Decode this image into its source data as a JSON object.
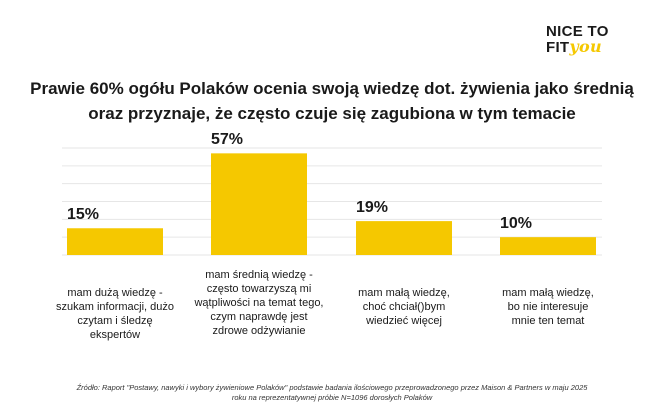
{
  "logo": {
    "line1": "NICE TO",
    "line2_a": "FIT",
    "line2_b": "you"
  },
  "title": "Prawie 60% ogółu Polaków ocenia swoją wiedzę dot. żywienia jako średnią oraz przyznaje, że często czuje się zagubiona w tym temacie",
  "chart_data": {
    "type": "bar",
    "categories": [
      "mam dużą wiedzę - szukam informacji, dużo czytam i śledzę ekspertów",
      "mam średnią wiedzę - często towarzyszą mi wątpliwości na temat tego, czym naprawdę jest zdrowe odżywianie",
      "mam małą wiedzę, choć chciał()bym wiedzieć więcej",
      "mam małą wiedzę, bo nie interesuje mnie ten temat"
    ],
    "values": [
      15,
      57,
      19,
      10
    ],
    "value_labels": [
      "15%",
      "57%",
      "19%",
      "10%"
    ],
    "ylim": [
      0,
      60
    ],
    "grid": true,
    "bar_color": "#f5c800"
  },
  "source": {
    "line1": "Źródło: Raport \"Postawy, nawyki i wybory żywieniowe Polaków\" podstawie badania ilościowego przeprowadzonego przez Maison & Partners w maju 2025",
    "line2": "roku na reprezentatywnej próbie N=1096 dorosłych Polaków"
  }
}
